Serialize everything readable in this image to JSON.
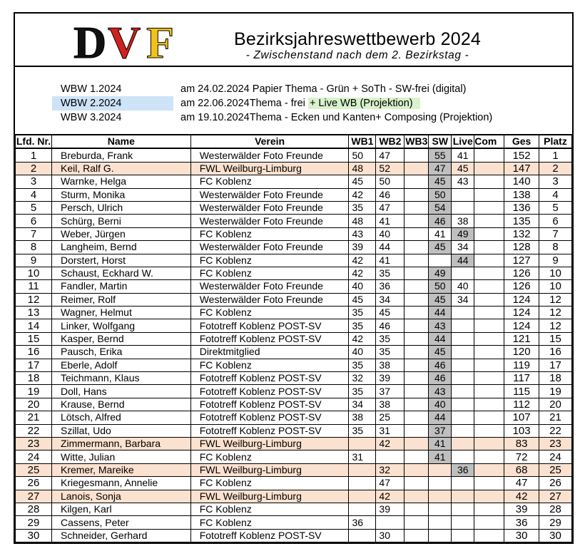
{
  "header": {
    "title": "Bezirksjahreswettbewerb 2024",
    "subtitle": "- Zwischenstand nach dem 2. Bezirkstag -",
    "logo_text": "DVF"
  },
  "competitions": [
    {
      "code": "WBW 1.2024",
      "description": "am 24.02.2024 Papier Thema - Grün + SoTh - SW-frei (digital)",
      "highlight": false,
      "live": ""
    },
    {
      "code": "WBW 2.2024",
      "description": "am 22.06.2024Thema - frei ",
      "highlight": true,
      "live": "+ Live WB (Projektion)"
    },
    {
      "code": "WBW 3.2024",
      "description": "am 19.10.2024Thema - Ecken und Kanten+ Composing (Projektion)",
      "highlight": false,
      "live": ""
    }
  ],
  "columns": [
    "Lfd. Nr.",
    "Name",
    "Verein",
    "WB1",
    "WB2",
    "WB3",
    "SW",
    "Live",
    "Com",
    "Ges",
    "Platz"
  ],
  "rows": [
    {
      "nr": "1",
      "name": "Breburda, Frank",
      "verein": "Westerwälder Foto Freunde",
      "wb1": "50",
      "wb2": "47",
      "wb3": "",
      "sw": "55",
      "live": "41",
      "com": "",
      "ges": "152",
      "platz": "1",
      "hl": false
    },
    {
      "nr": "2",
      "name": "Keil, Ralf G.",
      "verein": "FWL Weilburg-Limburg",
      "wb1": "48",
      "wb2": "52",
      "wb3": "",
      "sw": "47",
      "live": "45",
      "com": "",
      "ges": "147",
      "platz": "2",
      "hl": true
    },
    {
      "nr": "3",
      "name": "Warnke, Helga",
      "verein": "FC Koblenz",
      "wb1": "45",
      "wb2": "50",
      "wb3": "",
      "sw": "45",
      "live": "43",
      "com": "",
      "ges": "140",
      "platz": "3",
      "hl": false
    },
    {
      "nr": "4",
      "name": "Sturm, Monika",
      "verein": "Westerwälder Foto Freunde",
      "wb1": "42",
      "wb2": "46",
      "wb3": "",
      "sw": "50",
      "live": "",
      "com": "",
      "ges": "138",
      "platz": "4",
      "hl": false
    },
    {
      "nr": "5",
      "name": "Persch, Ulrich",
      "verein": "Westerwälder Foto Freunde",
      "wb1": "35",
      "wb2": "47",
      "wb3": "",
      "sw": "54",
      "live": "",
      "com": "",
      "ges": "136",
      "platz": "5",
      "hl": false
    },
    {
      "nr": "6",
      "name": "Schürg, Berni",
      "verein": "Westerwälder Foto Freunde",
      "wb1": "48",
      "wb2": "41",
      "wb3": "",
      "sw": "46",
      "live": "38",
      "com": "",
      "ges": "135",
      "platz": "6",
      "hl": false
    },
    {
      "nr": "7",
      "name": "Weber, Jürgen",
      "verein": "FC Koblenz",
      "wb1": "43",
      "wb2": "40",
      "wb3": "",
      "sw": "41",
      "live": "49",
      "com": "",
      "ges": "132",
      "platz": "7",
      "hl": false,
      "live_on": true,
      "sw_off": true
    },
    {
      "nr": "8",
      "name": "Langheim, Bernd",
      "verein": "Westerwälder Foto Freunde",
      "wb1": "39",
      "wb2": "44",
      "wb3": "",
      "sw": "45",
      "live": "34",
      "com": "",
      "ges": "128",
      "platz": "8",
      "hl": false
    },
    {
      "nr": "9",
      "name": "Dorstert, Horst",
      "verein": "FC Koblenz",
      "wb1": "42",
      "wb2": "41",
      "wb3": "",
      "sw": "",
      "live": "44",
      "com": "",
      "ges": "127",
      "platz": "9",
      "hl": false,
      "live_on": true
    },
    {
      "nr": "10",
      "name": "Schaust, Eckhard W.",
      "verein": "FC Koblenz",
      "wb1": "42",
      "wb2": "35",
      "wb3": "",
      "sw": "49",
      "live": "",
      "com": "",
      "ges": "126",
      "platz": "10",
      "hl": false
    },
    {
      "nr": "11",
      "name": "Fandler, Martin",
      "verein": "Westerwälder Foto Freunde",
      "wb1": "40",
      "wb2": "36",
      "wb3": "",
      "sw": "50",
      "live": "40",
      "com": "",
      "ges": "126",
      "platz": "10",
      "hl": false
    },
    {
      "nr": "12",
      "name": "Reimer, Rolf",
      "verein": "Westerwälder Foto Freunde",
      "wb1": "45",
      "wb2": "34",
      "wb3": "",
      "sw": "45",
      "live": "34",
      "com": "",
      "ges": "124",
      "platz": "12",
      "hl": false
    },
    {
      "nr": "13",
      "name": "Wagner, Helmut",
      "verein": "FC Koblenz",
      "wb1": "35",
      "wb2": "45",
      "wb3": "",
      "sw": "44",
      "live": "",
      "com": "",
      "ges": "124",
      "platz": "12",
      "hl": false
    },
    {
      "nr": "14",
      "name": "Linker, Wolfgang",
      "verein": "Fototreff Koblenz POST-SV",
      "wb1": "35",
      "wb2": "46",
      "wb3": "",
      "sw": "43",
      "live": "",
      "com": "",
      "ges": "124",
      "platz": "12",
      "hl": false
    },
    {
      "nr": "15",
      "name": "Kasper, Bernd",
      "verein": "Fototreff Koblenz POST-SV",
      "wb1": "42",
      "wb2": "35",
      "wb3": "",
      "sw": "44",
      "live": "",
      "com": "",
      "ges": "121",
      "platz": "15",
      "hl": false
    },
    {
      "nr": "16",
      "name": "Pausch, Erika",
      "verein": "Direktmitglied",
      "wb1": "40",
      "wb2": "35",
      "wb3": "",
      "sw": "45",
      "live": "",
      "com": "",
      "ges": "120",
      "platz": "16",
      "hl": false
    },
    {
      "nr": "17",
      "name": "Eberle, Adolf",
      "verein": "FC Koblenz",
      "wb1": "35",
      "wb2": "38",
      "wb3": "",
      "sw": "46",
      "live": "",
      "com": "",
      "ges": "119",
      "platz": "17",
      "hl": false
    },
    {
      "nr": "18",
      "name": "Teichmann, Klaus",
      "verein": "Fototreff Koblenz POST-SV",
      "wb1": "32",
      "wb2": "39",
      "wb3": "",
      "sw": "46",
      "live": "",
      "com": "",
      "ges": "117",
      "platz": "18",
      "hl": false
    },
    {
      "nr": "19",
      "name": "Doll, Hans",
      "verein": "Fototreff Koblenz POST-SV",
      "wb1": "35",
      "wb2": "37",
      "wb3": "",
      "sw": "43",
      "live": "",
      "com": "",
      "ges": "115",
      "platz": "19",
      "hl": false
    },
    {
      "nr": "20",
      "name": "Krause, Bernd",
      "verein": "Fototreff Koblenz POST-SV",
      "wb1": "34",
      "wb2": "38",
      "wb3": "",
      "sw": "40",
      "live": "",
      "com": "",
      "ges": "112",
      "platz": "20",
      "hl": false
    },
    {
      "nr": "21",
      "name": "Lötsch, Alfred",
      "verein": "Fototreff Koblenz POST-SV",
      "wb1": "38",
      "wb2": "25",
      "wb3": "",
      "sw": "44",
      "live": "",
      "com": "",
      "ges": "107",
      "platz": "21",
      "hl": false
    },
    {
      "nr": "22",
      "name": "Szillat, Udo",
      "verein": "Fototreff Koblenz POST-SV",
      "wb1": "35",
      "wb2": "31",
      "wb3": "",
      "sw": "37",
      "live": "",
      "com": "",
      "ges": "103",
      "platz": "22",
      "hl": false
    },
    {
      "nr": "23",
      "name": "Zimmermann, Barbara",
      "verein": "FWL Weilburg-Limburg",
      "wb1": "",
      "wb2": "42",
      "wb3": "",
      "sw": "41",
      "live": "",
      "com": "",
      "ges": "83",
      "platz": "23",
      "hl": true
    },
    {
      "nr": "24",
      "name": "Witte, Julian",
      "verein": "FC Koblenz",
      "wb1": "31",
      "wb2": "",
      "wb3": "",
      "sw": "41",
      "live": "",
      "com": "",
      "ges": "72",
      "platz": "24",
      "hl": false
    },
    {
      "nr": "25",
      "name": "Kremer, Mareike",
      "verein": "FWL Weilburg-Limburg",
      "wb1": "",
      "wb2": "32",
      "wb3": "",
      "sw": "",
      "live": "36",
      "com": "",
      "ges": "68",
      "platz": "25",
      "hl": true,
      "live_on": true
    },
    {
      "nr": "26",
      "name": "Kriegesmann, Annelie",
      "verein": "FC Koblenz",
      "wb1": "",
      "wb2": "47",
      "wb3": "",
      "sw": "",
      "live": "",
      "com": "",
      "ges": "47",
      "platz": "26",
      "hl": false
    },
    {
      "nr": "27",
      "name": "Lanois, Sonja",
      "verein": "FWL Weilburg-Limburg",
      "wb1": "",
      "wb2": "42",
      "wb3": "",
      "sw": "",
      "live": "",
      "com": "",
      "ges": "42",
      "platz": "27",
      "hl": true
    },
    {
      "nr": "28",
      "name": "Kilgen, Karl",
      "verein": "FC Koblenz",
      "wb1": "",
      "wb2": "39",
      "wb3": "",
      "sw": "",
      "live": "",
      "com": "",
      "ges": "39",
      "platz": "28",
      "hl": false
    },
    {
      "nr": "29",
      "name": "Cassens, Peter",
      "verein": "FC Koblenz",
      "wb1": "36",
      "wb2": "",
      "wb3": "",
      "sw": "",
      "live": "",
      "com": "",
      "ges": "36",
      "platz": "29",
      "hl": false
    },
    {
      "nr": "30",
      "name": "Schneider, Gerhard",
      "verein": "Fototreff Koblenz POST-SV",
      "wb1": "",
      "wb2": "30",
      "wb3": "",
      "sw": "",
      "live": "",
      "com": "",
      "ges": "30",
      "platz": "30",
      "hl": false
    }
  ],
  "colors": {
    "row_highlight": "#fbe1cf",
    "score_shade": "#bfbfbf",
    "wbw2_highlight": "#cde3f7",
    "live_highlight": "#d8f2cc"
  }
}
